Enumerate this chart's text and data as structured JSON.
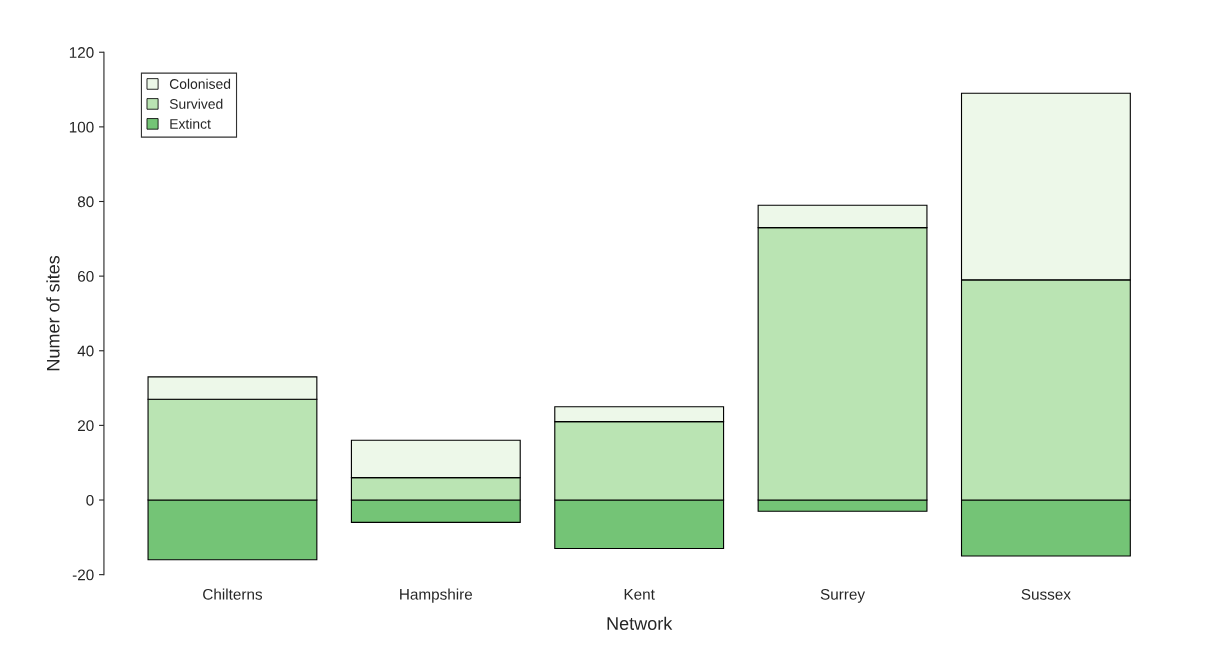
{
  "chart_data": {
    "type": "bar",
    "stacked": true,
    "xlabel": "Network",
    "ylabel": "Numer of sites",
    "categories": [
      "Chilterns",
      "Hampshire",
      "Kent",
      "Surrey",
      "Sussex"
    ],
    "series": [
      {
        "name": "Extinct",
        "color": "#74c476",
        "values": [
          -16,
          -6,
          -13,
          -3,
          -15
        ]
      },
      {
        "name": "Survived",
        "color": "#bae4b3",
        "values": [
          27,
          6,
          21,
          73,
          59
        ]
      },
      {
        "name": "Colonised",
        "color": "#edf8e9",
        "values": [
          6,
          10,
          4,
          6,
          50
        ]
      }
    ],
    "ylim": [
      -20,
      120
    ],
    "yticks": [
      -20,
      0,
      20,
      40,
      60,
      80,
      100,
      120
    ],
    "legend": "top left"
  }
}
